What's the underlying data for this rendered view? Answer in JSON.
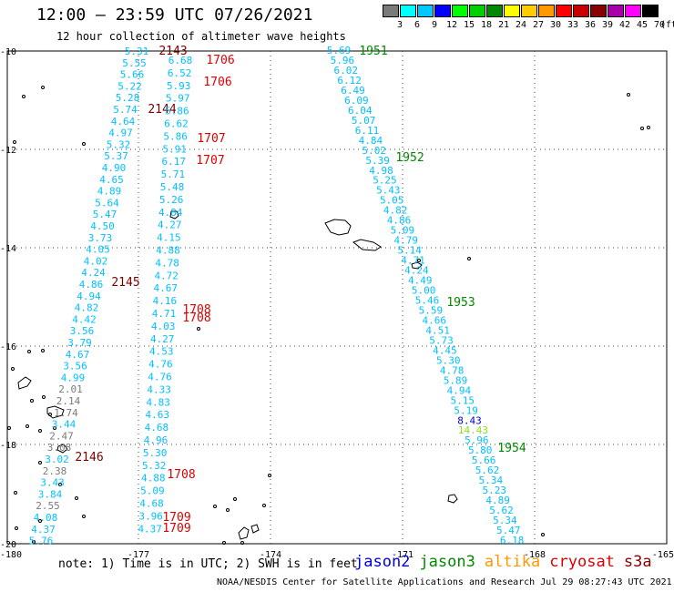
{
  "header": {
    "title": "12:00 – 23:59 UTC 07/26/2021",
    "subtitle": "12 hour collection of altimeter wave heights"
  },
  "legend": {
    "unit": "(ft)",
    "bins": [
      {
        "label": "3",
        "color": "#7a7a7a"
      },
      {
        "label": "6",
        "color": "#00ffff"
      },
      {
        "label": "9",
        "color": "#00c8ff"
      },
      {
        "label": "12",
        "color": "#0000ff"
      },
      {
        "label": "15",
        "color": "#00ff00"
      },
      {
        "label": "18",
        "color": "#00d000"
      },
      {
        "label": "21",
        "color": "#008800"
      },
      {
        "label": "24",
        "color": "#ffff00"
      },
      {
        "label": "27",
        "color": "#ffcc00"
      },
      {
        "label": "30",
        "color": "#ff9900"
      },
      {
        "label": "33",
        "color": "#ff0000"
      },
      {
        "label": "36",
        "color": "#c80000"
      },
      {
        "label": "39",
        "color": "#880000"
      },
      {
        "label": "42",
        "color": "#aa00aa"
      },
      {
        "label": "45",
        "color": "#ff00ff"
      },
      {
        "label": "70",
        "color": "#000000"
      }
    ]
  },
  "axes": {
    "lon_ticks": [
      "-180",
      "-177",
      "-174",
      "-171",
      "-168",
      "-165"
    ],
    "lat_ticks": [
      "-10",
      "-12",
      "-14",
      "-16",
      "-18",
      "-20"
    ]
  },
  "tracks": {
    "colors": {
      "swh": "#00c0ff",
      "gray": "#7a7a7a",
      "blue": "#0000cc",
      "green": "#90dd20",
      "red": "#dd0000",
      "darkred": "#770000",
      "darkgreen": "#008800"
    },
    "track_a": {
      "values": [
        "5.31",
        "5.55",
        "5.66",
        "5.22",
        "5.28",
        "5.74",
        "4.64",
        "4.97",
        "5.32",
        "5.37",
        "4.90",
        "4.65",
        "4.89",
        "5.64",
        "5.47",
        "4.50",
        "3.73",
        "4.05",
        "4.02",
        "4.24",
        "4.86",
        "4.94",
        "4.82",
        "4.42",
        "3.56",
        "3.79",
        "4.67",
        "3.56",
        "4.99",
        "2.01",
        "2.14",
        "1.74",
        "3.44",
        "2.47",
        "3.08",
        "3.02",
        "2.38",
        "3.43",
        "3.84",
        "2.55",
        "4.08",
        "4.37",
        "5.76"
      ],
      "gray_indices": [
        29,
        30,
        31,
        33,
        34,
        36,
        39
      ],
      "times": [
        {
          "label": "2143",
          "color": "darkred"
        },
        {
          "label": "2144",
          "color": "darkred"
        },
        {
          "label": "2145",
          "color": "darkred"
        },
        {
          "label": "2146",
          "color": "darkred"
        }
      ]
    },
    "track_b": {
      "values": [
        "6.68",
        "6.52",
        "5.93",
        "5.97",
        "5.86",
        "6.62",
        "5.86",
        "5.91",
        "6.17",
        "5.71",
        "5.48",
        "5.26",
        "4.84",
        "4.27",
        "4.15",
        "4.88",
        "4.78",
        "4.72",
        "4.67",
        "4.16",
        "4.71",
        "4.03",
        "4.27",
        "4.53",
        "4.76",
        "4.76",
        "4.33",
        "4.83",
        "4.63",
        "4.68",
        "4.96",
        "5.30",
        "5.32",
        "4.88",
        "5.09",
        "4.68",
        "3.96",
        "4.37"
      ],
      "times": [
        {
          "label": "1706",
          "color": "red"
        },
        {
          "label": "1706",
          "color": "red"
        },
        {
          "label": "1707",
          "color": "red"
        },
        {
          "label": "1707",
          "color": "red"
        },
        {
          "label": "1708",
          "color": "red"
        },
        {
          "label": "1708",
          "color": "red"
        },
        {
          "label": "1708",
          "color": "red"
        },
        {
          "label": "1709",
          "color": "red"
        },
        {
          "label": "1709",
          "color": "red"
        }
      ]
    },
    "track_c": {
      "values": [
        "5.69",
        "5.96",
        "6.02",
        "6.12",
        "6.49",
        "6.09",
        "6.04",
        "5.07",
        "6.11",
        "4.84",
        "5.02",
        "5.39",
        "4.98",
        "5.25",
        "5.43",
        "5.05",
        "4.82",
        "4.86",
        "5.09",
        "4.79",
        "5.14",
        "4.71",
        "4.24",
        "4.49",
        "5.00",
        "5.46",
        "5.59",
        "4.66",
        "4.51",
        "5.73",
        "4.45",
        "5.30",
        "4.78",
        "5.89",
        "4.94",
        "5.15",
        "5.19",
        "8.43",
        "14.43",
        "5.96",
        "5.80",
        "5.66",
        "5.62",
        "5.34",
        "5.23",
        "4.89",
        "5.62",
        "5.34",
        "5.47",
        "6.18"
      ],
      "special": {
        "37": "blue",
        "38": "green"
      },
      "times": [
        {
          "label": "1951",
          "color": "darkgreen"
        },
        {
          "label": "1952",
          "color": "darkgreen"
        },
        {
          "label": "1953",
          "color": "darkgreen"
        },
        {
          "label": "1954",
          "color": "darkgreen"
        }
      ]
    }
  },
  "footer": {
    "note": "note: 1) Time is in UTC; 2) SWH is in feet",
    "satellites": [
      {
        "name": "jason2",
        "color": "#0000dd"
      },
      {
        "name": "jason3",
        "color": "#008800"
      },
      {
        "name": "altika",
        "color": "#ff9900"
      },
      {
        "name": "cryosat",
        "color": "#dd0000"
      },
      {
        "name": "s3a",
        "color": "#880000"
      }
    ],
    "credit": "NOAA/NESDIS Center for Satellite Applications and Research   Jul 29 08:27:43 UTC 2021"
  }
}
